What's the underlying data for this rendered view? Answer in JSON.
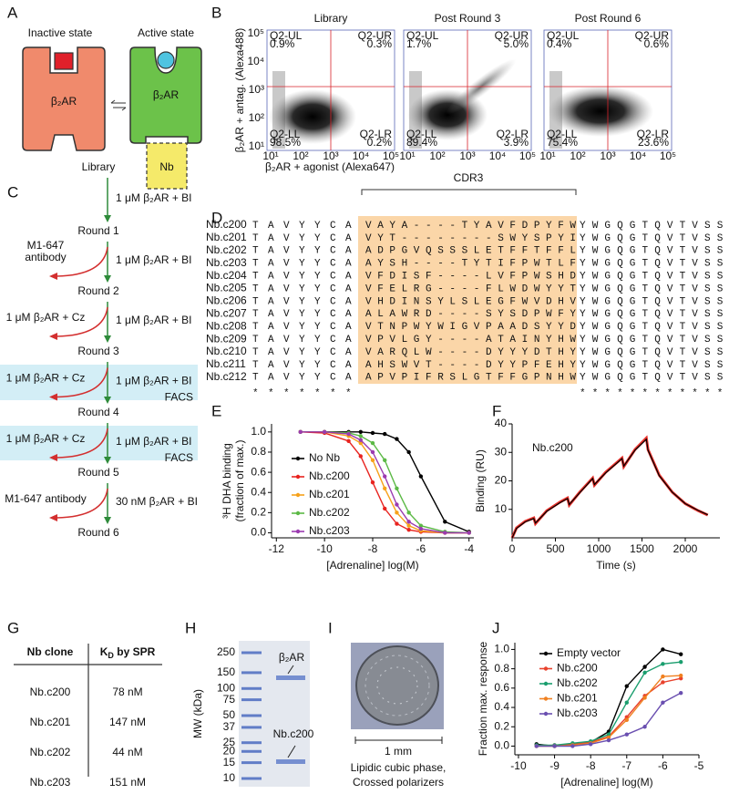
{
  "panel_labels": [
    "A",
    "B",
    "C",
    "D",
    "E",
    "F",
    "G",
    "H",
    "I",
    "J"
  ],
  "panel_a": {
    "inactive_title": "Inactive state",
    "active_title": "Active state",
    "receptor_inactive": "β₂AR",
    "receptor_active": "β₂AR",
    "nanobody": "Nb"
  },
  "panel_b": {
    "titles": [
      "Library",
      "Post Round 3",
      "Post Round 6"
    ],
    "quadrants": [
      [
        {
          "name": "Q2-UL",
          "value": "0.9%"
        },
        {
          "name": "Q2-UR",
          "value": "0.3%"
        },
        {
          "name": "Q2-LL",
          "value": "98.5%"
        },
        {
          "name": "Q2-LR",
          "value": "0.2%"
        }
      ],
      [
        {
          "name": "Q2-UL",
          "value": "1.7%"
        },
        {
          "name": "Q2-UR",
          "value": "5.0%"
        },
        {
          "name": "Q2-LL",
          "value": "89.4%"
        },
        {
          "name": "Q2-LR",
          "value": "3.9%"
        }
      ],
      [
        {
          "name": "Q2-UL",
          "value": "0.4%"
        },
        {
          "name": "Q2-UR",
          "value": "0.6%"
        },
        {
          "name": "Q2-LL",
          "value": "75.4%"
        },
        {
          "name": "Q2-LR",
          "value": "23.6%"
        }
      ]
    ],
    "ylabel": "β₂AR + antag. (Alexa488)",
    "xlabel": "β₂AR + agonist (Alexa647)",
    "tick_labels": [
      "10¹",
      "10²",
      "10³",
      "10⁴",
      "10⁵"
    ]
  },
  "panel_c": {
    "start": "Library",
    "rounds": [
      "Round 1",
      "Round 2",
      "Round 3",
      "Round 4",
      "Round 5",
      "Round 6"
    ],
    "steps": [
      {
        "selection": "1 μM β₂AR + BI"
      },
      {
        "selection": "1 μM β₂AR + BI",
        "depletion": [
          "M1-647",
          "antibody"
        ]
      },
      {
        "selection": "1 μM β₂AR + BI",
        "depletion": [
          "1 μM β₂AR + Cz"
        ]
      },
      {
        "selection": "1 μM β₂AR + BI",
        "depletion": [
          "1 μM β₂AR + Cz"
        ],
        "method": "FACS"
      },
      {
        "selection": "1 μM β₂AR + BI",
        "depletion": [
          "1 μM β₂AR + Cz"
        ],
        "method": "FACS"
      },
      {
        "selection": "30 nM β₂AR + BI",
        "depletion": [
          "M1-647 antibody"
        ]
      }
    ]
  },
  "panel_d": {
    "region": "CDR3",
    "rows": [
      {
        "name": "Nb.c200",
        "prefix": "TAVYYCA",
        "cdr3": "VAYA----TYAVFDPYFW",
        "suffix": "YWGQGTQVTVSS"
      },
      {
        "name": "Nb.c201",
        "prefix": "TAVYYCA",
        "cdr3": "VYT--------SWYSPYI",
        "suffix": "YWGQGTQVTVSS"
      },
      {
        "name": "Nb.c202",
        "prefix": "TAVYYCA",
        "cdr3": "ADPGVQSSSLETFFTFFL",
        "suffix": "YWGQGTQVTVSS"
      },
      {
        "name": "Nb.c203",
        "prefix": "TAVYYCA",
        "cdr3": "AYSH----TYTIFPWTLF",
        "suffix": "YWGQGTQVTVSS"
      },
      {
        "name": "Nb.c204",
        "prefix": "TAVYYCA",
        "cdr3": "VFDISF----LVFPWSHD",
        "suffix": "YWGQGTQVTVSS"
      },
      {
        "name": "Nb.c205",
        "prefix": "TAVYYCA",
        "cdr3": "VFELRG----FLWDWYYT",
        "suffix": "YWGQGTQVTVSS"
      },
      {
        "name": "Nb.c206",
        "prefix": "TAVYYCA",
        "cdr3": "VHDINSYLSLEGFWVDHV",
        "suffix": "YWGQGTQVTVSS"
      },
      {
        "name": "Nb.c207",
        "prefix": "TAVYYCA",
        "cdr3": "ALAWRD----SYSDPWFY",
        "suffix": "YWGQGTQVTVSS"
      },
      {
        "name": "Nb.c208",
        "prefix": "TAVYYCA",
        "cdr3": "VTNPWYWIGVPAADSYYD",
        "suffix": "YWGQGTQVTVSS"
      },
      {
        "name": "Nb.c209",
        "prefix": "TAVYYCA",
        "cdr3": "VPVLGY----ATAINYHW",
        "suffix": "YWGQGTQVTVSS"
      },
      {
        "name": "Nb.c210",
        "prefix": "TAVYYCA",
        "cdr3": "VARQLW----DYYYDTHY",
        "suffix": "YWGQGTQVTVSS"
      },
      {
        "name": "Nb.c211",
        "prefix": "TAVYYCA",
        "cdr3": "AHSWVT----DYYPFEHY",
        "suffix": "YWGQGTQVTVSS"
      },
      {
        "name": "Nb.c212",
        "prefix": "TAVYYCA",
        "cdr3": "APVPIFRSLGTFFGPNHW",
        "suffix": "YWGQGTQVTVSS"
      }
    ],
    "conservation": {
      "prefix": "*******",
      "suffix": "************"
    }
  },
  "panel_g": {
    "header": {
      "clone": "Nb clone",
      "kd": {
        "symbol": "K",
        "subscript": "D",
        "rest": " by SPR"
      }
    },
    "rows": [
      [
        "Nb.c200",
        "78 nM"
      ],
      [
        "Nb.c201",
        "147 nM"
      ],
      [
        "Nb.c202",
        "44 nM"
      ],
      [
        "Nb.c203",
        "151 nM"
      ]
    ]
  },
  "panel_h": {
    "ylabel": "MW (kDa)",
    "markers": [
      250,
      150,
      100,
      75,
      50,
      37,
      25,
      20,
      15,
      10
    ],
    "bands": [
      "β₂AR",
      "Nb.c200"
    ]
  },
  "panel_i": {
    "scale": "1 mm",
    "caption": [
      "Lipidic cubic phase,",
      "Crossed polarizers"
    ]
  },
  "chart_data": [
    {
      "type": "line",
      "markers": true,
      "legend": "left",
      "xlabel": "[Adrenaline] log(M)",
      "ylabel": [
        "³H DHA binding",
        "(fraction of max.)"
      ],
      "x": [
        -11,
        -10,
        -9,
        -8.5,
        -8,
        -7.5,
        -7,
        -6.5,
        -6,
        -5,
        -4
      ],
      "series": [
        {
          "name": "No Nb",
          "color": "#000000",
          "values": [
            1.0,
            1.0,
            1.0,
            1.0,
            0.99,
            0.98,
            0.93,
            0.8,
            0.56,
            0.11,
            0.01
          ]
        },
        {
          "name": "Nb.c200",
          "color": "#e8231f",
          "values": [
            1.0,
            0.99,
            0.91,
            0.76,
            0.5,
            0.24,
            0.09,
            0.03,
            0.01,
            0.0,
            0.0
          ]
        },
        {
          "name": "Nb.c201",
          "color": "#f7a11a",
          "values": [
            1.0,
            1.0,
            0.96,
            0.89,
            0.72,
            0.44,
            0.2,
            0.07,
            0.02,
            0.0,
            0.0
          ]
        },
        {
          "name": "Nb.c202",
          "color": "#5cb946",
          "values": [
            1.0,
            1.0,
            0.99,
            0.96,
            0.89,
            0.72,
            0.44,
            0.2,
            0.07,
            0.01,
            0.0
          ]
        },
        {
          "name": "Nb.c203",
          "color": "#9b3bb0",
          "values": [
            1.0,
            1.0,
            0.98,
            0.92,
            0.8,
            0.56,
            0.28,
            0.11,
            0.04,
            0.0,
            0.0
          ]
        }
      ],
      "xlim": [
        -12.2,
        -3.8
      ],
      "ylim": [
        -0.05,
        1.08
      ],
      "xticks": [
        -12,
        -10,
        -8,
        -6,
        -4
      ],
      "yticks": [
        {
          "value": 0,
          "label": "0.0"
        },
        0.2,
        0.4,
        0.6,
        0.8,
        {
          "value": 1,
          "label": "1.0"
        }
      ]
    },
    {
      "type": "line",
      "markers": false,
      "title": "Nb.c200",
      "xlabel": "Time (s)",
      "ylabel": [
        "Binding (RU)"
      ],
      "x": [
        0,
        50,
        150,
        250,
        270,
        400,
        550,
        640,
        660,
        780,
        930,
        950,
        1080,
        1270,
        1290,
        1420,
        1550,
        1570,
        1700,
        1850,
        2000,
        2150,
        2260
      ],
      "series": [
        {
          "color": "#e8302a",
          "values": [
            0,
            3.5,
            5.8,
            7,
            5,
            9.5,
            12.5,
            14,
            11.5,
            16,
            21,
            18.5,
            23,
            28,
            25,
            31,
            35,
            31,
            22,
            16,
            12,
            9.5,
            8
          ]
        },
        {
          "color": "#000000",
          "values": [
            0,
            3.3,
            5.6,
            6.8,
            5.2,
            9.3,
            12.3,
            13.8,
            11.7,
            15.8,
            20.8,
            18.7,
            22.8,
            27.8,
            25.2,
            30.8,
            34.6,
            30.8,
            21.8,
            16,
            12,
            9.6,
            8.1
          ]
        }
      ],
      "xlim": [
        0,
        2400
      ],
      "ylim": [
        0,
        40
      ],
      "xticks": [
        0,
        500,
        1000,
        1500,
        2000
      ],
      "yticks": [
        10,
        20,
        30,
        40
      ]
    },
    {
      "type": "line",
      "markers": true,
      "legend": "upper-left",
      "xlabel": "[Adrenaline] log(M)",
      "ylabel": [
        "Fraction max. response"
      ],
      "x": [
        -9.5,
        -9,
        -8.5,
        -8,
        -7.5,
        -7,
        -6.5,
        -6,
        -5.5
      ],
      "series": [
        {
          "name": "Empty vector",
          "color": "#000000",
          "values": [
            0.02,
            0.0,
            0.02,
            0.04,
            0.15,
            0.62,
            0.82,
            1.0,
            0.95
          ]
        },
        {
          "name": "Nb.c200",
          "color": "#e8412c",
          "values": [
            0.0,
            0.01,
            0.02,
            0.04,
            0.1,
            0.3,
            0.52,
            0.66,
            0.7
          ]
        },
        {
          "name": "Nb.c202",
          "color": "#1a9e6e",
          "values": [
            0.01,
            0.01,
            0.03,
            0.05,
            0.12,
            0.45,
            0.76,
            0.85,
            0.87
          ]
        },
        {
          "name": "Nb.c201",
          "color": "#f08020",
          "values": [
            0.0,
            0.0,
            0.01,
            0.03,
            0.09,
            0.27,
            0.5,
            0.72,
            0.73
          ]
        },
        {
          "name": "Nb.c203",
          "color": "#6a4fb0",
          "values": [
            0.0,
            0.0,
            0.0,
            0.02,
            0.06,
            0.12,
            0.2,
            0.45,
            0.55
          ]
        }
      ],
      "xlim": [
        -10.1,
        -5
      ],
      "ylim": [
        -0.09,
        1.07
      ],
      "xticks": [
        -10,
        -9,
        -8,
        -7,
        -6,
        -5
      ],
      "yticks": [
        {
          "value": 0,
          "label": "0.0"
        },
        0.2,
        0.4,
        0.6,
        0.8,
        {
          "value": 1,
          "label": "1.0"
        }
      ]
    }
  ]
}
